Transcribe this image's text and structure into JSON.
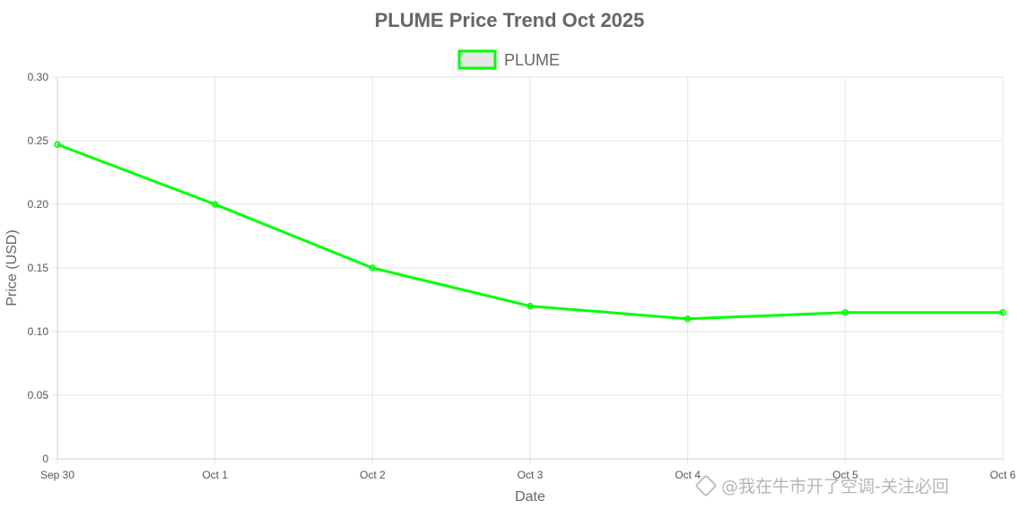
{
  "chart_data": {
    "type": "line",
    "title": "PLUME Price Trend Oct 2025",
    "xlabel": "Date",
    "ylabel": "Price (USD)",
    "categories": [
      "Sep 30",
      "Oct 1",
      "Oct 2",
      "Oct 3",
      "Oct 4",
      "Oct 5",
      "Oct 6"
    ],
    "series": [
      {
        "name": "PLUME",
        "values": [
          0.247,
          0.2,
          0.15,
          0.12,
          0.11,
          0.115,
          0.115
        ],
        "color": "#00ff00"
      }
    ],
    "ylim": [
      0,
      0.3
    ],
    "yticks": [
      "0",
      "0.05",
      "0.10",
      "0.15",
      "0.20",
      "0.25",
      "0.30"
    ],
    "grid": true,
    "legend_position": "top-center"
  },
  "watermark": {
    "text": "@我在牛市开了空调-关注必回"
  }
}
